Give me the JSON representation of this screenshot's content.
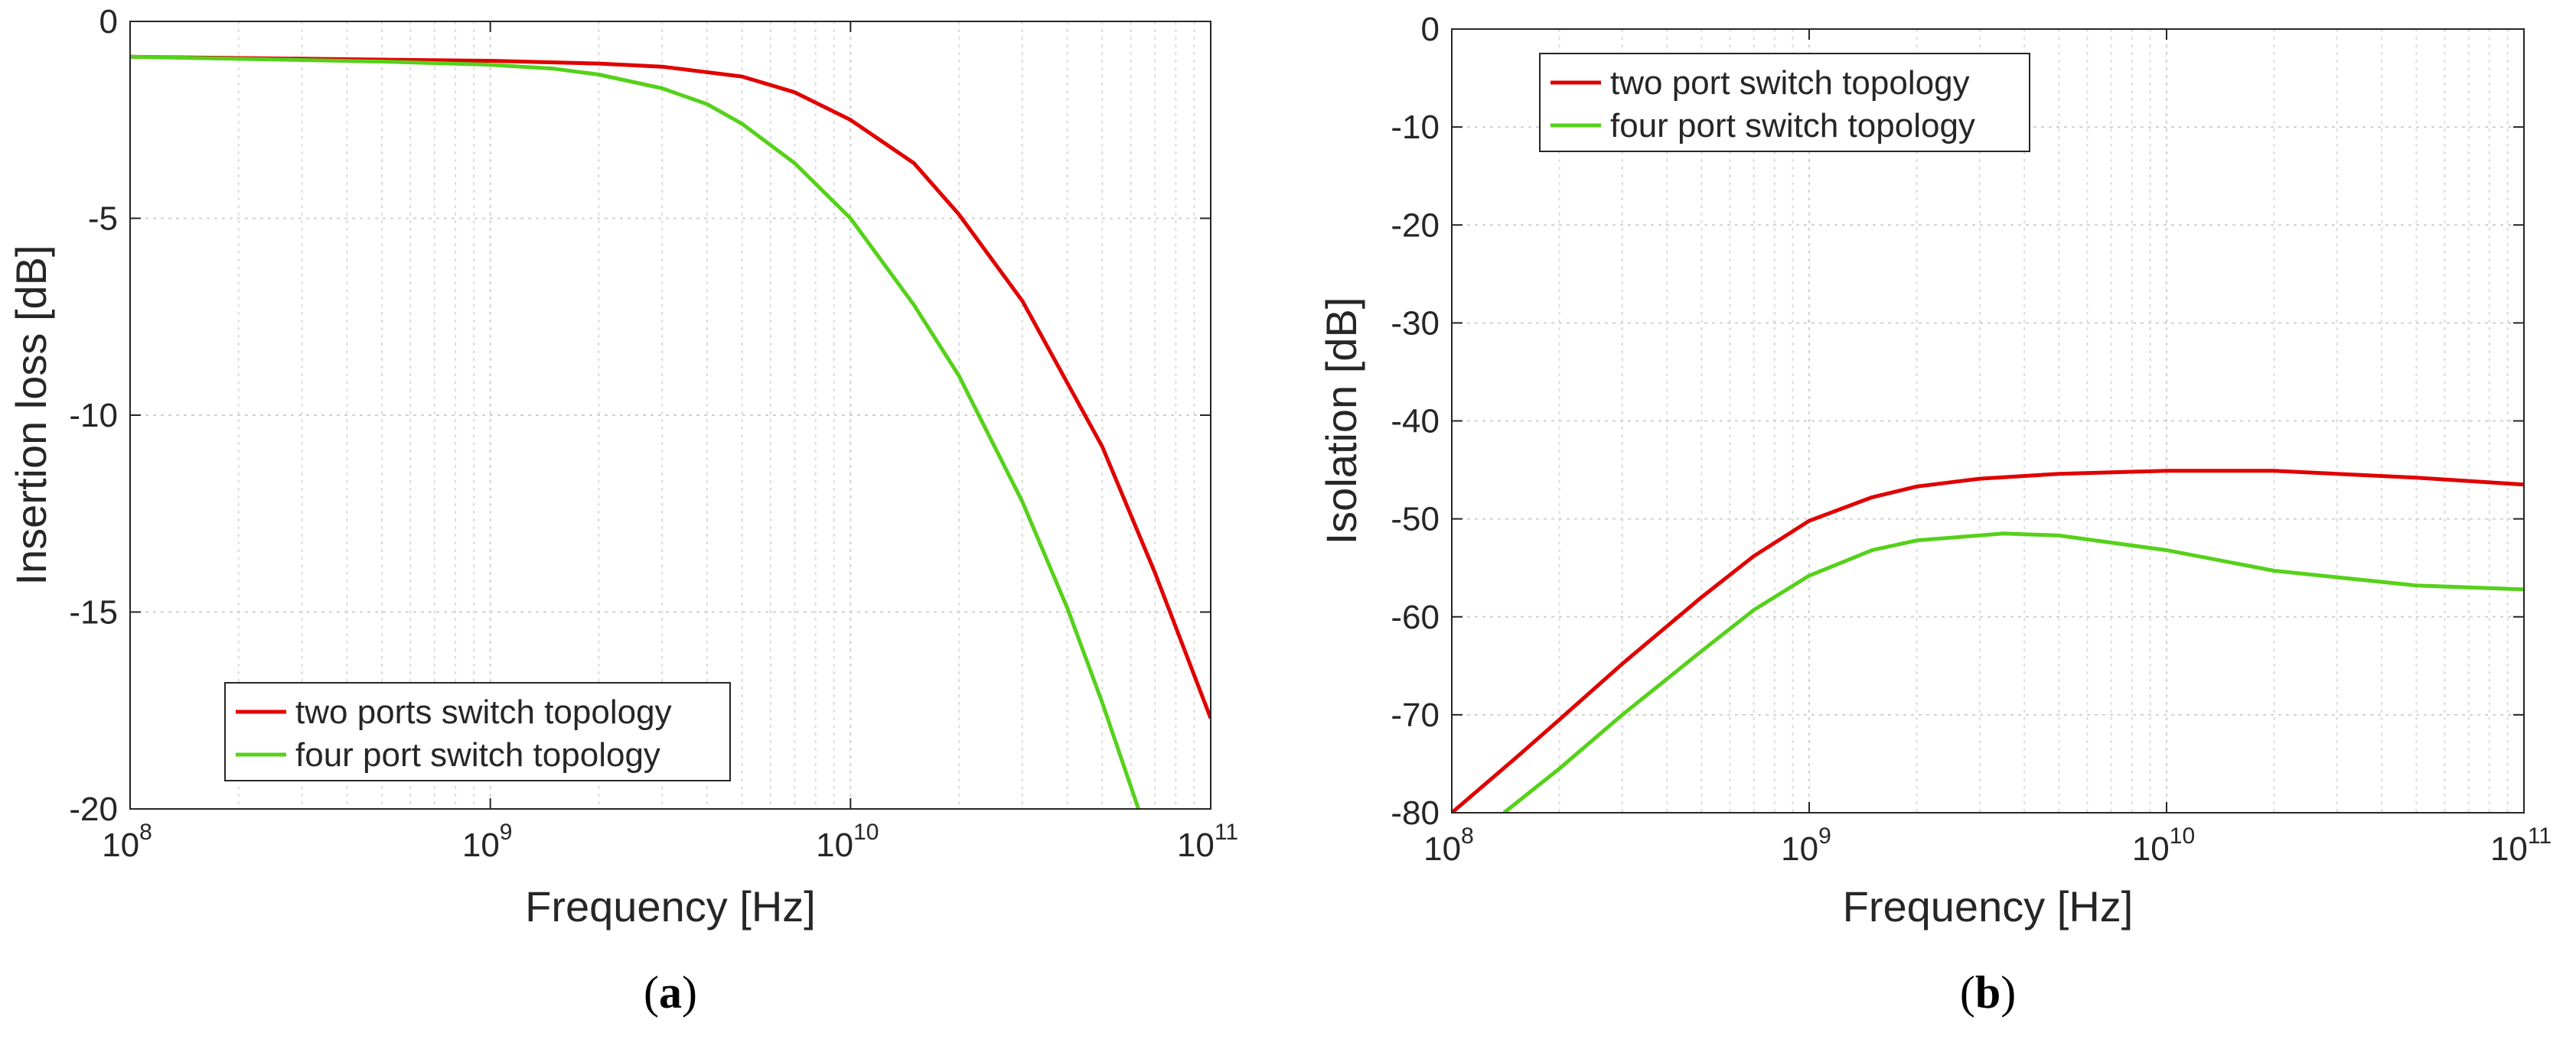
{
  "chart_data": [
    {
      "id": "a",
      "type": "line",
      "caption": "a",
      "xlabel": "Frequency [Hz]",
      "ylabel": "Insertion loss [dB]",
      "xscale": "log",
      "xlim": [
        100000000,
        100000000000
      ],
      "ylim": [
        -20,
        0
      ],
      "grid": true,
      "legend_position": "bottom-center",
      "x_ticks": [
        {
          "base": "10",
          "exp": "8"
        },
        {
          "base": "10",
          "exp": "9"
        },
        {
          "base": "10",
          "exp": "10"
        },
        {
          "base": "10",
          "exp": "11"
        }
      ],
      "y_ticks": [
        "0",
        "-5",
        "-10",
        "-15",
        "-20"
      ],
      "y_tick_values": [
        0,
        -5,
        -10,
        -15,
        -20
      ],
      "series": [
        {
          "name": "two ports switch topology",
          "color": "#e00000",
          "x": [
            100000000,
            200000000,
            500000000,
            1000000000,
            2000000000,
            3000000000,
            5000000000,
            7000000000,
            10000000000,
            15000000000,
            20000000000,
            30000000000,
            50000000000,
            70000000000,
            100000000000
          ],
          "y": [
            -0.9,
            -0.93,
            -0.97,
            -1.0,
            -1.07,
            -1.15,
            -1.4,
            -1.8,
            -2.5,
            -3.6,
            -4.9,
            -7.1,
            -10.8,
            -14.0,
            -17.7
          ]
        },
        {
          "name": "four port switch topology",
          "color": "#55d11a",
          "x": [
            100000000,
            200000000,
            500000000,
            1000000000,
            1500000000,
            2000000000,
            3000000000,
            4000000000,
            5000000000,
            7000000000,
            10000000000,
            15000000000,
            20000000000,
            30000000000,
            40000000000,
            50000000000,
            63000000000
          ],
          "y": [
            -0.9,
            -0.95,
            -1.02,
            -1.1,
            -1.2,
            -1.35,
            -1.7,
            -2.1,
            -2.6,
            -3.6,
            -5.0,
            -7.2,
            -9.0,
            -12.2,
            -14.9,
            -17.3,
            -20.0
          ]
        }
      ]
    },
    {
      "id": "b",
      "type": "line",
      "caption": "b",
      "xlabel": "Frequency [Hz]",
      "ylabel": "Isolation [dB]",
      "xscale": "log",
      "xlim": [
        100000000,
        100000000000
      ],
      "ylim": [
        -80,
        0
      ],
      "grid": true,
      "legend_position": "top-left",
      "x_ticks": [
        {
          "base": "10",
          "exp": "8"
        },
        {
          "base": "10",
          "exp": "9"
        },
        {
          "base": "10",
          "exp": "10"
        },
        {
          "base": "10",
          "exp": "11"
        }
      ],
      "y_ticks": [
        "0",
        "-10",
        "-20",
        "-30",
        "-40",
        "-50",
        "-60",
        "-70",
        "-80"
      ],
      "y_tick_values": [
        0,
        -10,
        -20,
        -30,
        -40,
        -50,
        -60,
        -70,
        -80
      ],
      "series": [
        {
          "name": "two port switch topology",
          "color": "#e00000",
          "x": [
            100000000,
            150000000,
            200000000,
            300000000,
            500000000,
            700000000,
            1000000000,
            1500000000,
            2000000000,
            3000000000,
            5000000000,
            10000000000,
            20000000000,
            50000000000,
            100000000000
          ],
          "y": [
            -80,
            -74.5,
            -70.5,
            -64.8,
            -58,
            -53.8,
            -50.2,
            -47.8,
            -46.7,
            -45.9,
            -45.4,
            -45.1,
            -45.1,
            -45.8,
            -46.5
          ]
        },
        {
          "name": "four port switch topology",
          "color": "#55d11a",
          "x": [
            140000000,
            200000000,
            300000000,
            500000000,
            700000000,
            1000000000,
            1500000000,
            2000000000,
            3500000000,
            5000000000,
            10000000000,
            20000000000,
            50000000000,
            100000000000
          ],
          "y": [
            -80,
            -75.5,
            -70,
            -63.5,
            -59.3,
            -55.8,
            -53.2,
            -52.2,
            -51.5,
            -51.7,
            -53.2,
            -55.3,
            -56.8,
            -57.2
          ]
        }
      ]
    }
  ]
}
